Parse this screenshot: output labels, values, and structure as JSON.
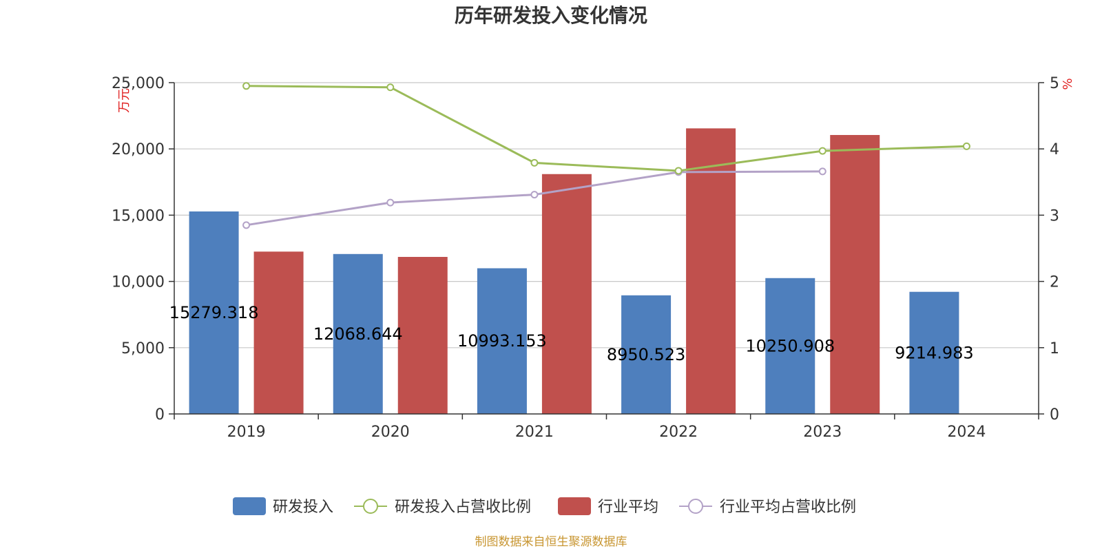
{
  "title": "历年研发投入变化情况",
  "source": "制图数据来自恒生聚源数据库",
  "colors": {
    "rd_bar": "#4e7fbd",
    "industry_bar": "#c0504d",
    "rd_ratio_line": "#9bbb59",
    "industry_ratio_line": "#b3a2c7"
  },
  "chart_data": {
    "type": "bar",
    "categories": [
      "2019",
      "2020",
      "2021",
      "2022",
      "2023",
      "2024"
    ],
    "left_axis": {
      "unit": "万元",
      "ylim": [
        0,
        25000
      ],
      "ticks": [
        0,
        5000,
        10000,
        15000,
        20000,
        25000
      ],
      "tick_labels": [
        "0",
        "5,000",
        "10,000",
        "15,000",
        "20,000",
        "25,000"
      ]
    },
    "right_axis": {
      "unit": "%",
      "ylim": [
        0,
        5
      ],
      "ticks": [
        0,
        1,
        2,
        3,
        4,
        5
      ],
      "tick_labels": [
        "0",
        "1",
        "2",
        "3",
        "4",
        "5"
      ]
    },
    "grid": true,
    "legend_position": "bottom",
    "series": [
      {
        "name": "研发投入",
        "kind": "bar",
        "axis": "left",
        "values": [
          15279.318,
          12068.644,
          10993.153,
          8950.523,
          10250.908,
          9214.983
        ],
        "labels": [
          "15279.318",
          "12068.644",
          "10993.153",
          "8950.523",
          "10250.908",
          "9214.983"
        ]
      },
      {
        "name": "研发投入占营收比例",
        "kind": "line",
        "axis": "right",
        "values": [
          4.95,
          4.93,
          3.79,
          3.67,
          3.97,
          4.04
        ]
      },
      {
        "name": "行业平均",
        "kind": "bar",
        "axis": "left",
        "values": [
          12250,
          11850,
          18100,
          21550,
          21050,
          null
        ]
      },
      {
        "name": "行业平均占营收比例",
        "kind": "line",
        "axis": "right",
        "values": [
          2.85,
          3.19,
          3.31,
          3.65,
          3.66,
          null
        ]
      }
    ]
  }
}
